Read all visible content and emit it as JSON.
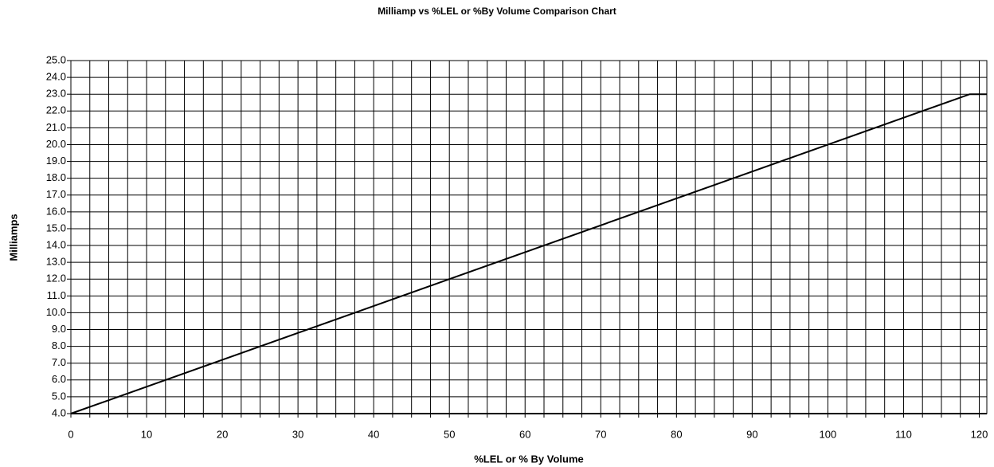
{
  "chart_data": {
    "type": "line",
    "title": "Milliamp vs %LEL or %By Volume Comparison Chart",
    "xlabel": "%LEL or % By Volume",
    "ylabel": "Milliamps",
    "x": [
      0,
      118.75,
      121
    ],
    "series": [
      {
        "name": "Milliamps",
        "color": "#000000",
        "values": [
          4,
          23,
          23
        ]
      }
    ],
    "xlim": [
      0,
      121
    ],
    "ylim": [
      4,
      25
    ],
    "xticks": [
      0,
      10,
      20,
      30,
      40,
      50,
      60,
      70,
      80,
      90,
      100,
      110,
      120
    ],
    "xminorticks": [
      0,
      2.5,
      5,
      7.5,
      10,
      12.5,
      15,
      17.5,
      20,
      22.5,
      25,
      27.5,
      30,
      32.5,
      35,
      37.5,
      40,
      42.5,
      45,
      47.5,
      50,
      52.5,
      55,
      57.5,
      60,
      62.5,
      65,
      67.5,
      70,
      72.5,
      75,
      77.5,
      80,
      82.5,
      85,
      87.5,
      90,
      92.5,
      95,
      97.5,
      100,
      102.5,
      105,
      107.5,
      110,
      112.5,
      115,
      117.5,
      120
    ],
    "yticks": [
      {
        "value": 4,
        "label": "4.0"
      },
      {
        "value": 5,
        "label": "5.0"
      },
      {
        "value": 6,
        "label": "6.0"
      },
      {
        "value": 7,
        "label": "7.0"
      },
      {
        "value": 8,
        "label": "8.0"
      },
      {
        "value": 9,
        "label": "9.0"
      },
      {
        "value": 10,
        "label": "10.0"
      },
      {
        "value": 11,
        "label": "11.0"
      },
      {
        "value": 12,
        "label": "12.0"
      },
      {
        "value": 13,
        "label": "13.0"
      },
      {
        "value": 14,
        "label": "14.0"
      },
      {
        "value": 15,
        "label": "15.0"
      },
      {
        "value": 16,
        "label": "16.0"
      },
      {
        "value": 17,
        "label": "17.0"
      },
      {
        "value": 18,
        "label": "18.0"
      },
      {
        "value": 19,
        "label": "19.0"
      },
      {
        "value": 20,
        "label": "20.0"
      },
      {
        "value": 21,
        "label": "21.0"
      },
      {
        "value": 22,
        "label": "22.0"
      },
      {
        "value": 23,
        "label": "23.0"
      },
      {
        "value": 24,
        "label": "24.0"
      },
      {
        "value": 25,
        "label": "25.0"
      }
    ],
    "grid": true
  }
}
